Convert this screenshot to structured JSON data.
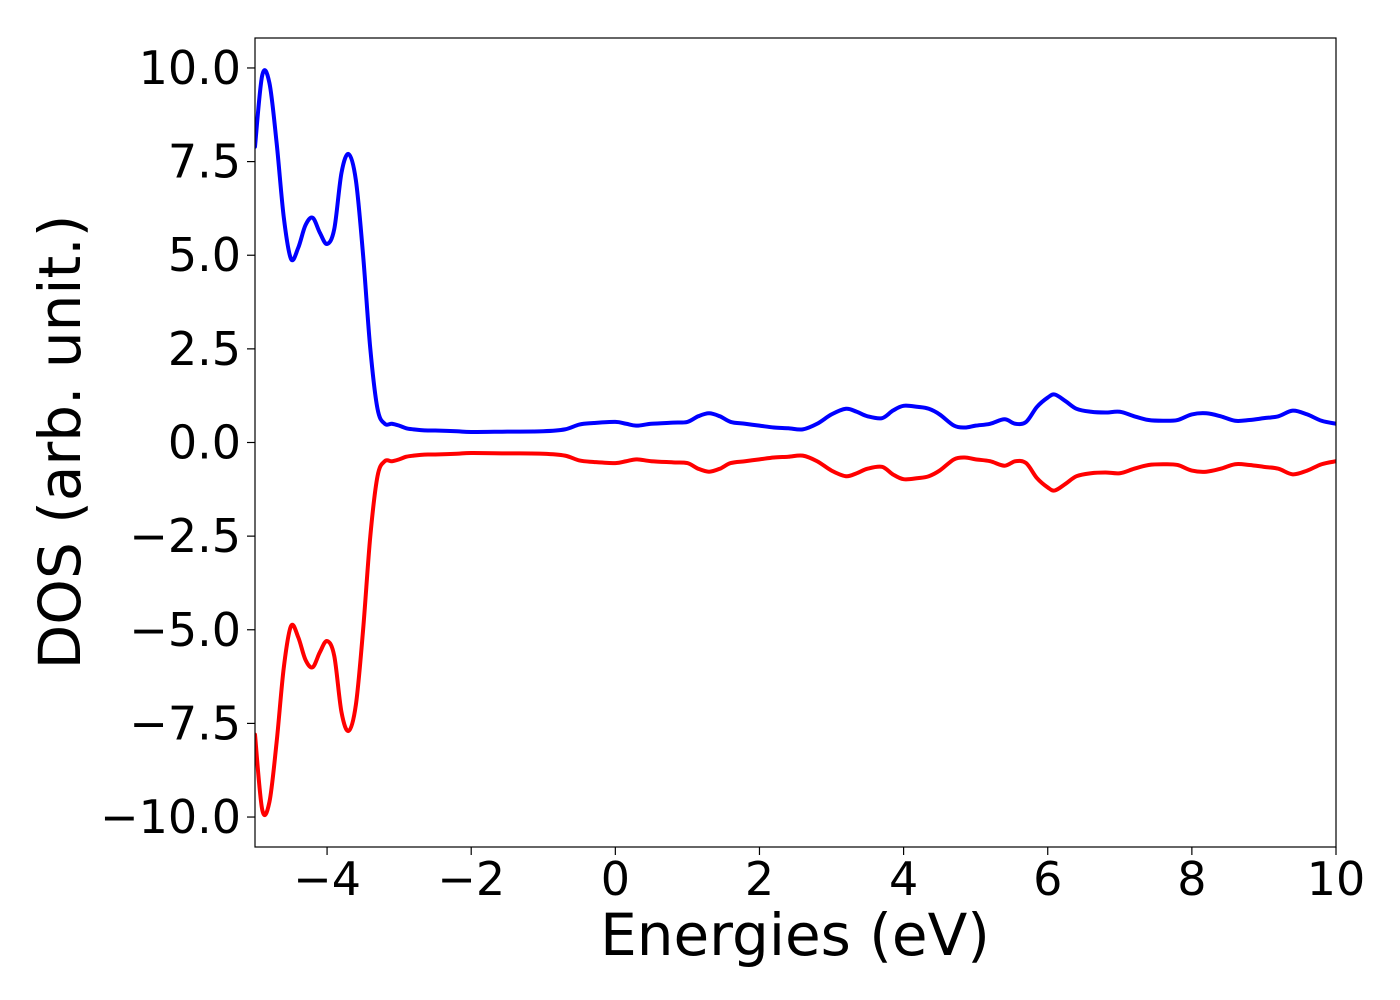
{
  "chart_data": {
    "type": "line",
    "title": "",
    "xlabel": "Energies (eV)",
    "ylabel": "DOS (arb. unit.)",
    "xlim": [
      -5,
      10
    ],
    "ylim": [
      -10.8,
      10.8
    ],
    "xticks": [
      -4,
      -2,
      0,
      2,
      4,
      6,
      8,
      10
    ],
    "xtick_labels": [
      "−4",
      "−2",
      "0",
      "2",
      "4",
      "6",
      "8",
      "10"
    ],
    "yticks": [
      10.0,
      7.5,
      5.0,
      2.5,
      0.0,
      -2.5,
      -5.0,
      -7.5,
      -10.0
    ],
    "ytick_labels": [
      "10.0",
      "7.5",
      "5.0",
      "2.5",
      "0.0",
      "−2.5",
      "−5.0",
      "−7.5",
      "−10.0"
    ],
    "grid": false,
    "legend": "none",
    "series": [
      {
        "color": "#0000ff",
        "x": [
          -5.0,
          -4.9,
          -4.8,
          -4.7,
          -4.6,
          -4.5,
          -4.4,
          -4.3,
          -4.2,
          -4.1,
          -4.0,
          -3.9,
          -3.8,
          -3.7,
          -3.6,
          -3.5,
          -3.4,
          -3.3,
          -3.2,
          -3.1,
          -3.0,
          -2.9,
          -2.8,
          -2.7,
          -2.6,
          -2.5,
          -2.2,
          -2.0,
          -1.5,
          -1.0,
          -0.7,
          -0.5,
          -0.3,
          0.0,
          0.15,
          0.3,
          0.5,
          0.8,
          1.0,
          1.15,
          1.3,
          1.45,
          1.6,
          1.8,
          2.0,
          2.2,
          2.4,
          2.6,
          2.8,
          3.0,
          3.2,
          3.35,
          3.5,
          3.7,
          3.85,
          4.0,
          4.2,
          4.35,
          4.5,
          4.7,
          4.85,
          5.0,
          5.2,
          5.4,
          5.55,
          5.7,
          5.85,
          6.0,
          6.1,
          6.25,
          6.4,
          6.6,
          6.8,
          7.0,
          7.2,
          7.4,
          7.6,
          7.8,
          8.0,
          8.2,
          8.4,
          8.6,
          8.8,
          9.0,
          9.2,
          9.4,
          9.6,
          9.8,
          10.0
        ],
        "y": [
          7.9,
          9.8,
          9.6,
          8.0,
          6.0,
          4.9,
          5.2,
          5.8,
          6.0,
          5.6,
          5.3,
          5.7,
          7.2,
          7.7,
          7.0,
          5.0,
          2.5,
          0.9,
          0.5,
          0.5,
          0.45,
          0.38,
          0.35,
          0.33,
          0.32,
          0.32,
          0.3,
          0.28,
          0.29,
          0.3,
          0.35,
          0.48,
          0.52,
          0.55,
          0.5,
          0.45,
          0.5,
          0.53,
          0.55,
          0.7,
          0.78,
          0.7,
          0.55,
          0.5,
          0.45,
          0.4,
          0.38,
          0.35,
          0.5,
          0.75,
          0.9,
          0.82,
          0.7,
          0.65,
          0.85,
          0.98,
          0.95,
          0.9,
          0.75,
          0.45,
          0.4,
          0.45,
          0.5,
          0.62,
          0.5,
          0.55,
          0.95,
          1.2,
          1.28,
          1.1,
          0.9,
          0.82,
          0.8,
          0.82,
          0.7,
          0.6,
          0.58,
          0.6,
          0.75,
          0.78,
          0.7,
          0.58,
          0.6,
          0.65,
          0.7,
          0.85,
          0.75,
          0.58,
          0.5
        ]
      },
      {
        "color": "#ff0000",
        "x": [
          -5.0,
          -4.9,
          -4.8,
          -4.7,
          -4.6,
          -4.5,
          -4.4,
          -4.3,
          -4.2,
          -4.1,
          -4.0,
          -3.9,
          -3.8,
          -3.7,
          -3.6,
          -3.5,
          -3.4,
          -3.3,
          -3.2,
          -3.1,
          -3.0,
          -2.9,
          -2.8,
          -2.7,
          -2.6,
          -2.5,
          -2.2,
          -2.0,
          -1.5,
          -1.0,
          -0.7,
          -0.5,
          -0.3,
          0.0,
          0.15,
          0.3,
          0.5,
          0.8,
          1.0,
          1.15,
          1.3,
          1.45,
          1.6,
          1.8,
          2.0,
          2.2,
          2.4,
          2.6,
          2.8,
          3.0,
          3.2,
          3.35,
          3.5,
          3.7,
          3.85,
          4.0,
          4.2,
          4.35,
          4.5,
          4.7,
          4.85,
          5.0,
          5.2,
          5.4,
          5.55,
          5.7,
          5.85,
          6.0,
          6.1,
          6.25,
          6.4,
          6.6,
          6.8,
          7.0,
          7.2,
          7.4,
          7.6,
          7.8,
          8.0,
          8.2,
          8.4,
          8.6,
          8.8,
          9.0,
          9.2,
          9.4,
          9.6,
          9.8,
          10.0
        ],
        "y": [
          -7.8,
          -9.8,
          -9.6,
          -8.0,
          -6.0,
          -4.9,
          -5.2,
          -5.8,
          -6.0,
          -5.6,
          -5.3,
          -5.7,
          -7.2,
          -7.7,
          -7.0,
          -5.0,
          -2.5,
          -0.9,
          -0.5,
          -0.5,
          -0.45,
          -0.38,
          -0.35,
          -0.33,
          -0.32,
          -0.32,
          -0.3,
          -0.28,
          -0.29,
          -0.3,
          -0.35,
          -0.48,
          -0.52,
          -0.55,
          -0.5,
          -0.45,
          -0.5,
          -0.53,
          -0.55,
          -0.7,
          -0.78,
          -0.7,
          -0.55,
          -0.5,
          -0.45,
          -0.4,
          -0.38,
          -0.35,
          -0.5,
          -0.75,
          -0.9,
          -0.82,
          -0.7,
          -0.65,
          -0.85,
          -0.98,
          -0.95,
          -0.9,
          -0.75,
          -0.45,
          -0.4,
          -0.45,
          -0.5,
          -0.62,
          -0.5,
          -0.55,
          -0.95,
          -1.2,
          -1.28,
          -1.1,
          -0.9,
          -0.82,
          -0.8,
          -0.82,
          -0.7,
          -0.6,
          -0.58,
          -0.6,
          -0.75,
          -0.78,
          -0.7,
          -0.58,
          -0.6,
          -0.65,
          -0.7,
          -0.85,
          -0.75,
          -0.58,
          -0.5
        ]
      }
    ]
  }
}
